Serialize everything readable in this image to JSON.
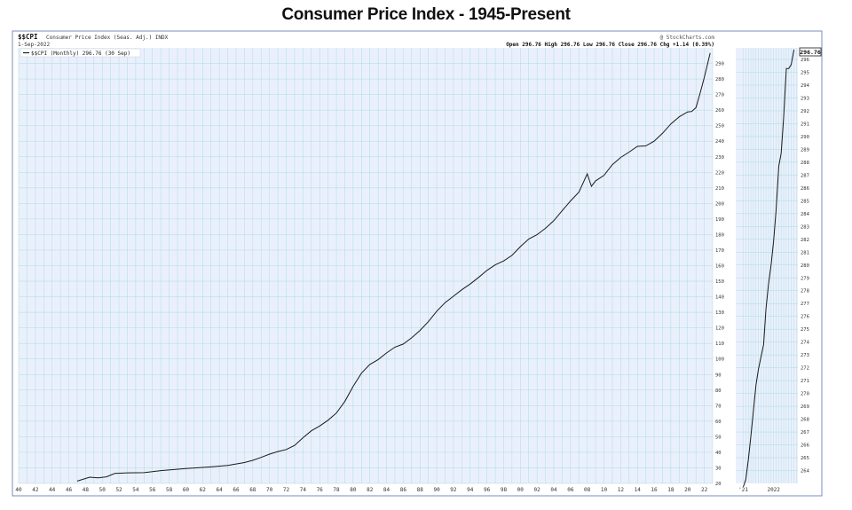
{
  "page_title": "Consumer Price Index - 1945-Present",
  "header": {
    "symbol": "$$CPI",
    "description": "Consumer Price Index (Seas. Adj.) INDX",
    "date": "1-Sep-2022",
    "source": "@ StockCharts.com",
    "quote": "Open 296.76  High 296.76  Low 296.76  Close 296.76  Chg +1.14 (0.39%)",
    "legend": "$$CPI (Monthly) 296.76 (30 Sep)",
    "last_label": "296.76"
  },
  "colors": {
    "frame": "#7a8cbf",
    "plot_bg": "#eaf0fb",
    "grid": "#aadbe8",
    "line": "#1a1a1a"
  },
  "chart_data": [
    {
      "type": "line",
      "name": "main",
      "xlim": [
        1940,
        2023
      ],
      "ylim": [
        20,
        300
      ],
      "grid": true,
      "x_ticks": [
        "40",
        "42",
        "44",
        "46",
        "48",
        "50",
        "52",
        "54",
        "56",
        "58",
        "60",
        "62",
        "64",
        "66",
        "68",
        "70",
        "72",
        "74",
        "76",
        "78",
        "80",
        "82",
        "84",
        "86",
        "88",
        "90",
        "92",
        "94",
        "96",
        "98",
        "00",
        "02",
        "04",
        "06",
        "08",
        "10",
        "12",
        "14",
        "16",
        "18",
        "20",
        "22"
      ],
      "y_ticks": [
        "290",
        "280",
        "270",
        "260",
        "250",
        "240",
        "230",
        "220",
        "210",
        "200",
        "190",
        "180",
        "170",
        "160",
        "150",
        "140",
        "130",
        "120",
        "110",
        "100",
        "90",
        "80",
        "70",
        "60",
        "50",
        "40",
        "30",
        "20"
      ],
      "series": [
        {
          "x": [
            1947,
            1948.5,
            1949.5,
            1950.5,
            1951.5,
            1953,
            1955,
            1957,
            1960,
            1963,
            1965,
            1967,
            1968,
            1969,
            1970,
            1971,
            1972,
            1973,
            1974,
            1975,
            1976,
            1977,
            1978,
            1979,
            1980,
            1981,
            1982,
            1983,
            1984,
            1985,
            1986,
            1987,
            1988,
            1989,
            1990,
            1991,
            1992,
            1993,
            1994,
            1995,
            1996,
            1997,
            1998,
            1999,
            2000,
            2001,
            2002,
            2003,
            2004,
            2005,
            2006,
            2007,
            2008,
            2008.5,
            2009,
            2010,
            2011,
            2012,
            2013,
            2014,
            2015,
            2016,
            2017,
            2018,
            2019,
            2020,
            2020.5,
            2021,
            2021.5,
            2022,
            2022.7
          ],
          "y": [
            21.5,
            24,
            23.6,
            24.2,
            26.4,
            26.8,
            26.9,
            28.2,
            29.6,
            30.6,
            31.5,
            33.4,
            34.8,
            36.7,
            38.8,
            40.5,
            41.8,
            44.4,
            49.3,
            53.8,
            56.9,
            60.6,
            65.2,
            72.6,
            82.4,
            90.9,
            96.5,
            99.6,
            103.9,
            107.6,
            109.6,
            113.6,
            118.3,
            124,
            130.7,
            136.2,
            140.3,
            144.5,
            148.2,
            152.4,
            156.9,
            160.5,
            163,
            166.6,
            172.2,
            177.1,
            179.9,
            184,
            188.9,
            195.3,
            201.6,
            207.3,
            219,
            211,
            214.5,
            218,
            224.9,
            229.6,
            233,
            236.7,
            237,
            240,
            245.1,
            251.1,
            255.7,
            258.8,
            259.1,
            261.6,
            271,
            281,
            296.76
          ]
        }
      ]
    },
    {
      "type": "line",
      "name": "zoom",
      "xlim": [
        2020.75,
        2022.8
      ],
      "ylim": [
        263,
        296.9
      ],
      "grid": true,
      "x_ticks": [
        "'21",
        "2022"
      ],
      "y_ticks": [
        "296",
        "295",
        "294",
        "293",
        "292",
        "291",
        "290",
        "289",
        "288",
        "287",
        "286",
        "285",
        "284",
        "283",
        "282",
        "281",
        "280",
        "279",
        "278",
        "277",
        "276",
        "275",
        "274",
        "273",
        "272",
        "271",
        "270",
        "269",
        "268",
        "267",
        "266",
        "265",
        "264"
      ],
      "series": [
        {
          "x": [
            2021.0,
            2021.08,
            2021.17,
            2021.25,
            2021.33,
            2021.42,
            2021.5,
            2021.58,
            2021.67,
            2021.75,
            2021.83,
            2021.92,
            2022.0,
            2022.08,
            2022.17,
            2022.25,
            2022.33,
            2022.42,
            2022.5,
            2022.58,
            2022.67
          ],
          "y": [
            262.2,
            263.3,
            264.9,
            266.7,
            268.6,
            270.7,
            271.9,
            272.8,
            273.8,
            276.6,
            278.5,
            280.1,
            281.9,
            284.2,
            287.7,
            288.7,
            291.5,
            295.3,
            295.3,
            295.6,
            296.76
          ]
        }
      ]
    }
  ]
}
